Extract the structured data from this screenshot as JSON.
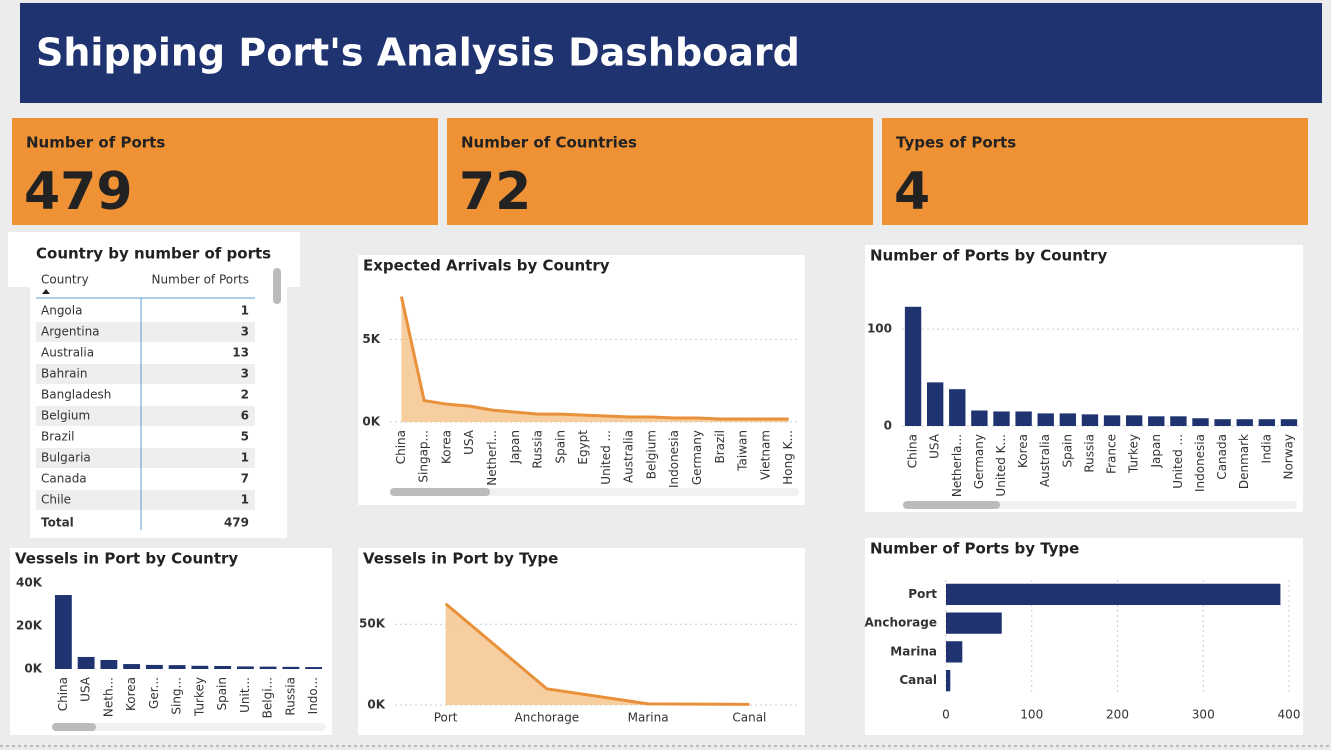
{
  "header": {
    "title": "Shipping Port's Analysis Dashboard"
  },
  "kpis": [
    {
      "label": "Number of Ports",
      "value": 479
    },
    {
      "label": "Number of Countries",
      "value": 72
    },
    {
      "label": "Types of Ports",
      "value": 4
    }
  ],
  "table": {
    "title": "Country by number of ports",
    "columns": [
      "Country",
      "Number of Ports"
    ],
    "rows": [
      [
        "Angola",
        1
      ],
      [
        "Argentina",
        3
      ],
      [
        "Australia",
        13
      ],
      [
        "Bahrain",
        3
      ],
      [
        "Bangladesh",
        2
      ],
      [
        "Belgium",
        6
      ],
      [
        "Brazil",
        5
      ],
      [
        "Bulgaria",
        1
      ],
      [
        "Canada",
        7
      ],
      [
        "Chile",
        1
      ]
    ],
    "total": [
      "Total",
      479
    ]
  },
  "chart_data": [
    {
      "type": "area",
      "title": "Expected Arrivals by Country",
      "color": "#e8913a",
      "categories": [
        "China",
        "Singap...",
        "Korea",
        "USA",
        "Netherl...",
        "Japan",
        "Russia",
        "Spain",
        "Egypt",
        "United ...",
        "Australia",
        "Belgium",
        "Indonesia",
        "Germany",
        "Brazil",
        "Taiwan",
        "Vietnam",
        "Hong K..."
      ],
      "values": [
        7600,
        1300,
        1080,
        960,
        720,
        600,
        480,
        480,
        420,
        360,
        300,
        300,
        240,
        240,
        180,
        180,
        180,
        180
      ],
      "ylim": [
        0,
        8000
      ],
      "yticks": [
        {
          "value": 0,
          "label": "0K"
        },
        {
          "value": 5000,
          "label": "5K"
        }
      ],
      "grid": true
    },
    {
      "type": "bar",
      "title": "Number of Ports by Country",
      "color": "#1f3370",
      "categories": [
        "China",
        "USA",
        "Netherla...",
        "Germany",
        "United K...",
        "Korea",
        "Australia",
        "Spain",
        "Russia",
        "France",
        "Turkey",
        "Japan",
        "United ...",
        "Indonesia",
        "Canada",
        "Denmark",
        "India",
        "Norway"
      ],
      "values": [
        123,
        45,
        38,
        16,
        15,
        15,
        13,
        13,
        12,
        11,
        11,
        10,
        10,
        8,
        7,
        7,
        7,
        7
      ],
      "ylim": [
        0,
        130
      ],
      "yticks": [
        0,
        100
      ],
      "grid": true
    },
    {
      "type": "bar",
      "title": "Vessels in Port by Country",
      "color": "#1f3370",
      "categories": [
        "China",
        "USA",
        "Neth...",
        "Korea",
        "Ger...",
        "Sing...",
        "Turkey",
        "Spain",
        "Unit...",
        "Belgi...",
        "Russia",
        "Indo..."
      ],
      "values": [
        34400,
        5600,
        4200,
        2300,
        1900,
        1800,
        1500,
        1400,
        1200,
        1100,
        1000,
        900
      ],
      "ylim": [
        0,
        40000
      ],
      "yticks": [
        {
          "value": 0,
          "label": "0K"
        },
        {
          "value": 20000,
          "label": "20K"
        },
        {
          "value": 40000,
          "label": "40K"
        }
      ],
      "grid": false
    },
    {
      "type": "area",
      "title": "Vessels in Port by Type",
      "color": "#e8913a",
      "categories": [
        "Port",
        "Anchorage",
        "Marina",
        "Canal"
      ],
      "values": [
        62700,
        10000,
        700,
        400
      ],
      "ylim": [
        0,
        65000
      ],
      "yticks": [
        {
          "value": 0,
          "label": "0K"
        },
        {
          "value": 50000,
          "label": "50K"
        }
      ],
      "grid": true
    },
    {
      "type": "hbar",
      "title": "Number of Ports by Type",
      "color": "#1f3370",
      "categories": [
        "Port",
        "Anchorage",
        "Marina",
        "Canal"
      ],
      "values": [
        390,
        65,
        19,
        5
      ],
      "xlim": [
        0,
        400
      ],
      "xticks": [
        0,
        100,
        200,
        300,
        400
      ],
      "grid": true
    }
  ]
}
